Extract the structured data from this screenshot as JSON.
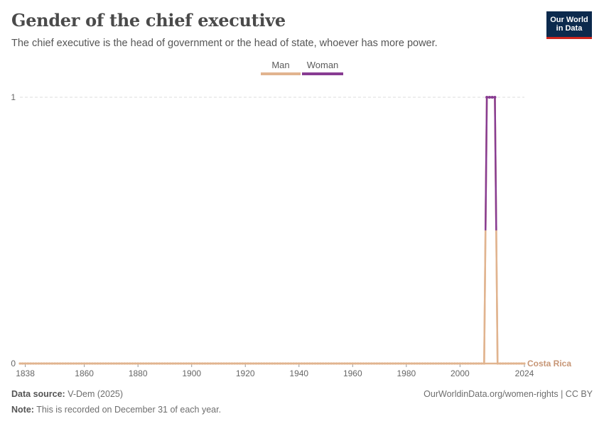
{
  "header": {
    "title": "Gender of the chief executive",
    "subtitle": "The chief executive is the head of government or the head of state, whoever has more power.",
    "logo_line1": "Our World",
    "logo_line2": "in Data"
  },
  "legend": [
    {
      "label": "Man",
      "color": "#e1b48f"
    },
    {
      "label": "Woman",
      "color": "#883c92"
    }
  ],
  "footer": {
    "source_label": "Data source:",
    "source_value": "V-Dem (2025)",
    "note_label": "Note:",
    "note_value": "This is recorded on December 31 of each year.",
    "url": "OurWorldinData.org/women-rights | CC BY"
  },
  "chart_data": {
    "type": "area",
    "stacked": true,
    "entity": "Costa Rica",
    "x_start": 1836,
    "x_end": 2024,
    "xlim": [
      1836,
      2024
    ],
    "ylim": [
      0,
      1
    ],
    "x_ticks": [
      "1838",
      "1860",
      "1880",
      "1900",
      "1920",
      "1940",
      "1960",
      "1980",
      "2000",
      "2024"
    ],
    "y_ticks": [
      "0",
      "1"
    ],
    "grid": "horizontal dashed",
    "legend_position": "top-center",
    "series": [
      {
        "name": "Man",
        "color": "#e1b48f",
        "default": 0,
        "overrides": {}
      },
      {
        "name": "Woman",
        "color": "#883c92",
        "default": 0,
        "overrides": {
          "2010": 1,
          "2011": 1,
          "2012": 1,
          "2013": 1
        }
      }
    ],
    "end_label_color": "#c79676"
  }
}
